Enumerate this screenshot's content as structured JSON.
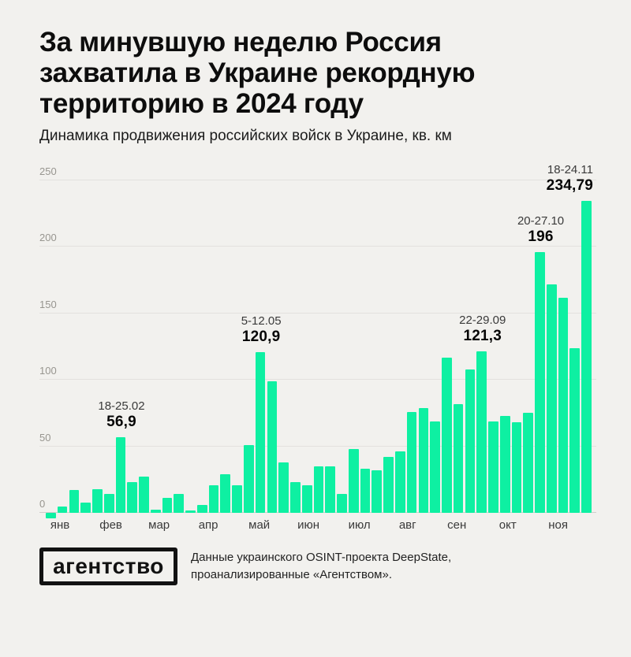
{
  "header": {
    "title_lines": [
      "За минувшую неделю Россия",
      "захватила в Украине рекордную",
      "территорию в 2024 году"
    ],
    "subtitle": "Динамика продвижения российских войск в Украине, кв. км"
  },
  "colors": {
    "background": "#f2f1ee",
    "bar": "#0ef0a2",
    "gridline": "#e3e1de",
    "title_text": "#0d0d0d",
    "annotation_value": "#050505",
    "axis_label": "#97958f"
  },
  "chart_data": {
    "type": "bar",
    "title": "За минувшую неделю Россия захватила в Украине рекордную территорию в 2024 году",
    "subtitle": "Динамика продвижения российских войск в Украине, кв. км",
    "ylabel": "кв. км",
    "ylim": [
      -10,
      250
    ],
    "yticks": [
      0,
      50,
      100,
      150,
      200,
      250
    ],
    "grid": true,
    "legend": "none",
    "values": [
      -4,
      5,
      17,
      8,
      18,
      14,
      56.9,
      23,
      27,
      2.5,
      11,
      14,
      1.5,
      6,
      20.5,
      29,
      20.5,
      51,
      120.9,
      99,
      38,
      23,
      21,
      35,
      35,
      14,
      48,
      33,
      32,
      42,
      46,
      76,
      79,
      69,
      117,
      82,
      108,
      121.3,
      69,
      73,
      68,
      75,
      196,
      172,
      162,
      124,
      234.79
    ],
    "months": [
      {
        "label": "янв",
        "pos": 0.026
      },
      {
        "label": "фев",
        "pos": 0.119
      },
      {
        "label": "мар",
        "pos": 0.207
      },
      {
        "label": "апр",
        "pos": 0.297
      },
      {
        "label": "май",
        "pos": 0.39
      },
      {
        "label": "июн",
        "pos": 0.48
      },
      {
        "label": "июл",
        "pos": 0.573
      },
      {
        "label": "авг",
        "pos": 0.661
      },
      {
        "label": "сен",
        "pos": 0.751
      },
      {
        "label": "окт",
        "pos": 0.844
      },
      {
        "label": "ноя",
        "pos": 0.936
      }
    ],
    "annotations": [
      {
        "bar_index": 6,
        "date": "18-25.02",
        "value": "56,9"
      },
      {
        "bar_index": 18,
        "date": "5-12.05",
        "value": "120,9"
      },
      {
        "bar_index": 37,
        "date": "22-29.09",
        "value": "121,3"
      },
      {
        "bar_index": 42,
        "date": "20-27.10",
        "value": "196"
      },
      {
        "bar_index": 46,
        "date": "18-24.11",
        "value": "234,79",
        "align": "right"
      }
    ]
  },
  "footer": {
    "logo_text": "агентство",
    "source_lines": [
      "Данные украинского OSINT-проекта DeepState,",
      "проанализированные «Агентством»."
    ]
  }
}
